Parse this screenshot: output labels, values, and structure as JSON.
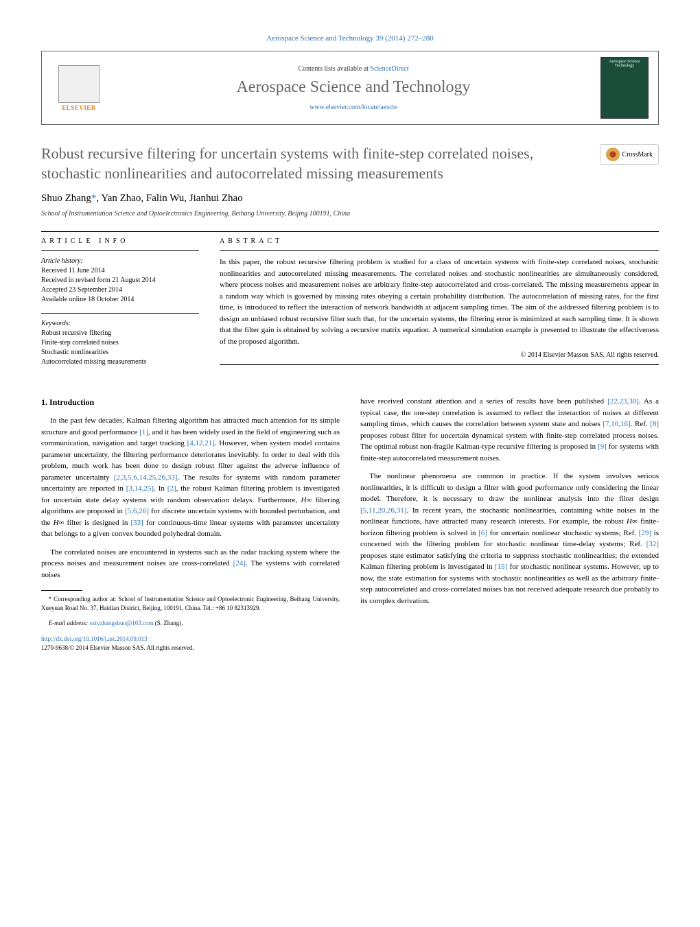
{
  "header": {
    "journal_ref": "Aerospace Science and Technology 39 (2014) 272–280",
    "contents_prefix": "Contents lists available at ",
    "contents_link": "ScienceDirect",
    "journal_name": "Aerospace Science and Technology",
    "journal_url": "www.elsevier.com/locate/aescte",
    "publisher": "ELSEVIER",
    "cover_text": "Aerospace Science Technology"
  },
  "crossmark": {
    "label": "CrossMark"
  },
  "title": "Robust recursive filtering for uncertain systems with finite-step correlated noises, stochastic nonlinearities and autocorrelated missing measurements",
  "authors_line": "Shuo Zhang",
  "authors_rest": ", Yan Zhao, Falin Wu, Jianhui Zhao",
  "corr_marker": "*",
  "affiliation": "School of Instrumentation Science and Optoelectronics Engineering, Beihang University, Beijing 100191, China",
  "article_info": {
    "label": "ARTICLE INFO",
    "history_hdr": "Article history:",
    "received": "Received 11 June 2014",
    "revised": "Received in revised form 21 August 2014",
    "accepted": "Accepted 23 September 2014",
    "online": "Available online 18 October 2014",
    "keywords_hdr": "Keywords:",
    "kw1": "Robust recursive filtering",
    "kw2": "Finite-step correlated noises",
    "kw3": "Stochastic nonlinearities",
    "kw4": "Autocorrelated missing measurements"
  },
  "abstract": {
    "label": "ABSTRACT",
    "text": "In this paper, the robust recursive filtering problem is studied for a class of uncertain systems with finite-step correlated noises, stochastic nonlinearities and autocorrelated missing measurements. The correlated noises and stochastic nonlinearities are simultaneously considered, where process noises and measurement noises are arbitrary finite-step autocorrelated and cross-correlated. The missing measurements appear in a random way which is governed by missing rates obeying a certain probability distribution. The autocorrelation of missing rates, for the first time, is introduced to reflect the interaction of network bandwidth at adjacent sampling times. The aim of the addressed filtering problem is to design an unbiased robust recursive filter such that, for the uncertain systems, the filtering error is minimized at each sampling time. It is shown that the filter gain is obtained by solving a recursive matrix equation. A numerical simulation example is presented to illustrate the effectiveness of the proposed algorithm.",
    "copyright": "© 2014 Elsevier Masson SAS. All rights reserved."
  },
  "introduction": {
    "heading": "1. Introduction",
    "p1a": "In the past few decades, Kalman filtering algorithm has attracted much attention for its simple structure and good performance ",
    "ref1": "[1]",
    "p1b": ", and it has been widely used in the field of engineering such as communication, navigation and target tracking ",
    "ref2": "[4,12,21]",
    "p1c": ". However, when system model contains parameter uncertainty, the filtering performance deteriorates inevitably. In order to deal with this problem, much work has been done to design robust filter against the adverse influence of parameter uncertainty ",
    "ref3": "[2,3,5,6,14,25,26,33]",
    "p1d": ". The results for systems with random parameter uncertainty are reported in ",
    "ref4": "[3,14,25]",
    "p1e": ". In ",
    "ref5": "[2]",
    "p1f": ", the robust Kalman filtering problem is investigated for uncertain state delay systems with random observation delays. Furthermore, ",
    "hinf1": "H∞",
    "p1g": " filtering algorithms are proposed in ",
    "ref6": "[5,6,26]",
    "p1h": " for discrete uncertain systems with bounded perturbation, and the ",
    "hinf2": "H∞",
    "p1i": " filter is designed in ",
    "ref7": "[33]",
    "p1j": " for continuous-time linear systems with parameter uncertainty that belongs to a given convex bounded polyhedral domain.",
    "p2a": "The correlated noises are encountered in systems such as the radar tracking system where the process noises and measurement noises are cross-correlated ",
    "ref8": "[24]",
    "p2b": ". The systems with correlated noises",
    "p3a": "have received constant attention and a series of results have been published ",
    "ref9": "[22,23,30]",
    "p3b": ". As a typical case, the one-step correlation is assumed to reflect the interaction of noises at different sampling times, which causes the correlation between system state and noises ",
    "ref10": "[7,10,16]",
    "p3c": ". Ref. ",
    "ref11": "[8]",
    "p3d": " proposes robust filter for uncertain dynamical system with finite-step correlated process noises. The optimal robust non-fragile Kalman-type recursive filtering is proposed in ",
    "ref12": "[9]",
    "p3e": " for systems with finite-step autocorrelated measurement noises.",
    "p4a": "The nonlinear phenomena are common in practice. If the system involves serious nonlinearities, it is difficult to design a filter with good performance only considering the linear model. Therefore, it is necessary to draw the nonlinear analysis into the filter design ",
    "ref13": "[5,11,20,26,31]",
    "p4b": ". In recent years, the stochastic nonlinearities, containing white noises in the nonlinear functions, have attracted many research interests. For example, the robust ",
    "hinf3": "H∞",
    "p4c": " finite-horizon filtering problem is solved in ",
    "ref14": "[6]",
    "p4d": " for uncertain nonlinear stochastic systems; Ref. ",
    "ref15": "[29]",
    "p4e": " is concerned with the filtering problem for stochastic nonlinear time-delay systems; Ref. ",
    "ref16": "[32]",
    "p4f": " proposes state estimator satisfying the criteria to suppress stochastic nonlinearities; the extended Kalman filtering problem is investigated in ",
    "ref17": "[15]",
    "p4g": " for stochastic nonlinear systems. However, up to now, the state estimation for systems with stochastic nonlinearities as well as the arbitrary finite-step autocorrelated and cross-correlated noises has not received adequate research due probably to its complex derivation."
  },
  "footnote": {
    "corr": "* Corresponding author at: School of Instrumentation Science and Optoelectronic Engineering, Beihang University, Xueyuan Road No. 37, Haidian District, Beijing, 100191, China. Tel.: +86 10 82313929.",
    "email_label": "E-mail address: ",
    "email": "sxtyzhangshuo@163.com",
    "email_suffix": " (S. Zhang)."
  },
  "doi": {
    "url": "http://dx.doi.org/10.1016/j.ast.2014.09.013",
    "issn_line": "1270-9638/© 2014 Elsevier Masson SAS. All rights reserved."
  },
  "colors": {
    "link": "#2b6fb3",
    "title_gray": "#606060",
    "elsevier_orange": "#e87d1e"
  }
}
